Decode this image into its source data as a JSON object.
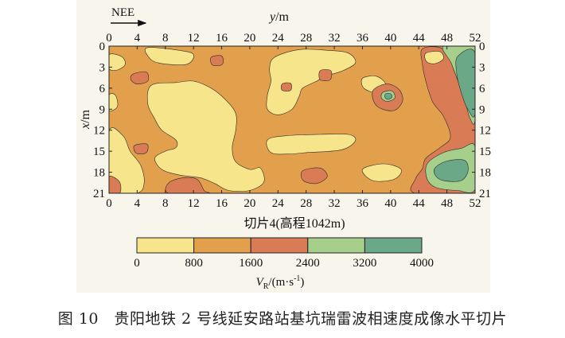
{
  "figure": {
    "caption": "图 10　贵阳地铁 2 号线延安路站基坑瑞雷波相速度成像水平切片"
  },
  "chart_data": {
    "type": "heatmap",
    "direction_label": "NEE",
    "xlabel_italic": "y",
    "xlabel_unit": "/m",
    "ylabel_italic": "x",
    "ylabel_unit": "/m",
    "x_ticks": [
      "0",
      "4",
      "8",
      "12",
      "16",
      "20",
      "24",
      "28",
      "32",
      "36",
      "40",
      "44",
      "48",
      "52"
    ],
    "y_ticks": [
      "0",
      "3",
      "6",
      "9",
      "12",
      "15",
      "18",
      "21"
    ],
    "xlim": [
      0,
      52
    ],
    "ylim": [
      0,
      21
    ],
    "slice_label": "切片4(高程1042m)",
    "colorbar": {
      "label_main": "V",
      "label_sub": "R",
      "label_unit": "/(m·s",
      "label_exp": "-1",
      "label_tail": ")",
      "ticks": [
        "0",
        "800",
        "1600",
        "2400",
        "3200",
        "4000"
      ],
      "bins": [
        {
          "min": 0,
          "max": 800,
          "color": "#f7e58c"
        },
        {
          "min": 800,
          "max": 1600,
          "color": "#e2a04d"
        },
        {
          "min": 1600,
          "max": 2400,
          "color": "#d97c55"
        },
        {
          "min": 2400,
          "max": 3200,
          "color": "#a7cf8c"
        },
        {
          "min": 3200,
          "max": 4000,
          "color": "#6aa888"
        }
      ]
    },
    "background_class": 1,
    "regions": [
      {
        "cls": 0,
        "pts": [
          [
            5.5,
            0.2
          ],
          [
            10,
            0.6
          ],
          [
            12,
            1.2
          ],
          [
            11,
            2.6
          ],
          [
            7,
            2.4
          ],
          [
            5.5,
            1.4
          ]
        ]
      },
      {
        "cls": 0,
        "pts": [
          [
            0,
            1.2
          ],
          [
            1.8,
            1.5
          ],
          [
            2.3,
            2.6
          ],
          [
            1.2,
            3.4
          ],
          [
            0,
            3.2
          ]
        ]
      },
      {
        "cls": 0,
        "pts": [
          [
            0,
            7
          ],
          [
            0.9,
            7
          ],
          [
            1.2,
            8.6
          ],
          [
            0,
            9.2
          ]
        ]
      },
      {
        "cls": 0,
        "pts": [
          [
            6,
            5.6
          ],
          [
            9.5,
            5.2
          ],
          [
            12,
            5
          ],
          [
            14.5,
            6
          ],
          [
            16.5,
            7.6
          ],
          [
            18,
            9.6
          ],
          [
            18,
            12
          ],
          [
            17.5,
            14.5
          ],
          [
            18,
            16.5
          ],
          [
            20,
            17.6
          ],
          [
            21.5,
            17.4
          ],
          [
            22,
            19.4
          ],
          [
            20,
            20.6
          ],
          [
            17,
            20.6
          ],
          [
            15,
            19.6
          ],
          [
            13,
            18.8
          ],
          [
            10,
            18.4
          ],
          [
            7.5,
            17.6
          ],
          [
            6.5,
            16
          ],
          [
            8,
            15
          ],
          [
            9.5,
            14.5
          ],
          [
            9.5,
            13.4
          ],
          [
            7.5,
            12
          ],
          [
            6.5,
            10.4
          ],
          [
            5.5,
            8.2
          ]
        ]
      },
      {
        "cls": 0,
        "pts": [
          [
            23.5,
            1.6
          ],
          [
            27,
            0.5
          ],
          [
            31,
            0.6
          ],
          [
            34,
            1
          ],
          [
            35,
            2.4
          ],
          [
            33,
            3.6
          ],
          [
            31,
            4.2
          ],
          [
            29.5,
            5
          ],
          [
            27.5,
            6
          ],
          [
            27,
            7.2
          ],
          [
            26,
            9
          ],
          [
            24,
            9.8
          ],
          [
            22.5,
            9
          ],
          [
            22.5,
            7
          ],
          [
            23,
            5
          ],
          [
            22.8,
            3.2
          ]
        ]
      },
      {
        "cls": 0,
        "pts": [
          [
            22.5,
            13.4
          ],
          [
            25,
            12.8
          ],
          [
            30,
            12.6
          ],
          [
            34,
            12.6
          ],
          [
            35,
            13.5
          ],
          [
            33,
            14.8
          ],
          [
            28,
            15.2
          ],
          [
            25.5,
            15.4
          ],
          [
            23,
            15.2
          ]
        ]
      },
      {
        "cls": 0,
        "pts": [
          [
            0,
            12.2
          ],
          [
            2,
            12.8
          ],
          [
            3,
            15
          ],
          [
            4.5,
            17
          ],
          [
            5,
            19.5
          ],
          [
            4,
            21
          ],
          [
            0,
            21
          ]
        ]
      },
      {
        "cls": 0,
        "pts": [
          [
            36,
            17.6
          ],
          [
            39,
            16.8
          ],
          [
            41.5,
            17.6
          ],
          [
            40.5,
            19
          ],
          [
            37.5,
            19.2
          ]
        ]
      },
      {
        "cls": 0,
        "pts": [
          [
            36,
            4.6
          ],
          [
            38,
            4.3
          ],
          [
            39.3,
            5.5
          ],
          [
            38,
            6.6
          ],
          [
            36.2,
            6
          ]
        ]
      },
      {
        "cls": 2,
        "pts": [
          [
            3.4,
            4
          ],
          [
            5.3,
            3.7
          ],
          [
            5.5,
            5
          ],
          [
            4,
            5.4
          ],
          [
            3.1,
            4.8
          ]
        ]
      },
      {
        "cls": 2,
        "pts": [
          [
            3.6,
            14.2
          ],
          [
            5.4,
            14
          ],
          [
            5.3,
            15.2
          ],
          [
            3.9,
            15.3
          ]
        ]
      },
      {
        "cls": 2,
        "pts": [
          [
            14.5,
            1.6
          ],
          [
            16,
            1.4
          ],
          [
            16.1,
            2.6
          ],
          [
            14.7,
            2.7
          ]
        ]
      },
      {
        "cls": 2,
        "pts": [
          [
            30,
            3.5
          ],
          [
            31.5,
            3.5
          ],
          [
            31.4,
            4.8
          ],
          [
            30,
            4.8
          ]
        ]
      },
      {
        "cls": 2,
        "pts": [
          [
            24.6,
            5.4
          ],
          [
            25.8,
            5.3
          ],
          [
            25.8,
            6.3
          ],
          [
            24.6,
            6.3
          ]
        ]
      },
      {
        "cls": 2,
        "pts": [
          [
            27.5,
            17.8
          ],
          [
            30,
            17.4
          ],
          [
            31,
            18.6
          ],
          [
            29.5,
            19.6
          ],
          [
            27.6,
            19.2
          ]
        ]
      },
      {
        "cls": 2,
        "pts": [
          [
            8.5,
            19.5
          ],
          [
            10.5,
            18.8
          ],
          [
            12.5,
            19
          ],
          [
            13.5,
            20.6
          ],
          [
            14,
            21
          ],
          [
            8.5,
            21
          ]
        ]
      },
      {
        "cls": 2,
        "pts": [
          [
            0,
            18.6
          ],
          [
            1.5,
            19.4
          ],
          [
            1.5,
            21
          ],
          [
            0,
            21
          ]
        ]
      },
      {
        "cls": 2,
        "pts": [
          [
            37.6,
            6.2
          ],
          [
            39.5,
            5.4
          ],
          [
            41.2,
            6.2
          ],
          [
            41.7,
            7.8
          ],
          [
            40.5,
            9.2
          ],
          [
            38.4,
            8.8
          ],
          [
            37.5,
            7.6
          ]
        ]
      },
      {
        "cls": 2,
        "pts": [
          [
            44.5,
            0.4
          ],
          [
            47,
            0.2
          ],
          [
            48.5,
            1.5
          ],
          [
            49,
            3.5
          ],
          [
            50.5,
            6.5
          ],
          [
            51,
            9
          ],
          [
            52,
            10
          ],
          [
            52,
            21
          ],
          [
            43.5,
            21
          ],
          [
            43.5,
            19
          ],
          [
            44.5,
            17.5
          ],
          [
            45,
            16
          ],
          [
            47,
            14.5
          ],
          [
            48.5,
            13
          ],
          [
            47.5,
            10
          ],
          [
            46,
            8
          ],
          [
            45,
            5
          ],
          [
            44.5,
            2.5
          ]
        ]
      },
      {
        "cls": 0,
        "pts": [
          [
            45,
            1
          ],
          [
            47,
            0.8
          ],
          [
            47.5,
            1.8
          ],
          [
            46.3,
            2.5
          ],
          [
            45.1,
            2.2
          ]
        ]
      },
      {
        "cls": 3,
        "pts": [
          [
            38.9,
            6.6
          ],
          [
            40.2,
            6.4
          ],
          [
            40.6,
            7.4
          ],
          [
            39.5,
            7.9
          ],
          [
            38.7,
            7.4
          ]
        ]
      },
      {
        "cls": 3,
        "pts": [
          [
            47.5,
            0
          ],
          [
            52,
            0
          ],
          [
            52,
            10.4
          ],
          [
            51.2,
            10.1
          ],
          [
            50.5,
            7.5
          ],
          [
            49.5,
            4.8
          ],
          [
            48.6,
            2.4
          ]
        ]
      },
      {
        "cls": 3,
        "pts": [
          [
            45.2,
            16.8
          ],
          [
            47.5,
            15.2
          ],
          [
            50,
            14.6
          ],
          [
            52,
            14.3
          ],
          [
            52,
            20.4
          ],
          [
            49.5,
            20.6
          ],
          [
            46.5,
            20.2
          ],
          [
            45.2,
            19
          ]
        ]
      },
      {
        "cls": 4,
        "pts": [
          [
            49.5,
            1.5
          ],
          [
            52,
            1
          ],
          [
            52,
            9.6
          ],
          [
            50.9,
            8.9
          ],
          [
            50,
            6.5
          ],
          [
            49.4,
            4
          ]
        ]
      },
      {
        "cls": 4,
        "pts": [
          [
            39.3,
            6.8
          ],
          [
            40,
            6.8
          ],
          [
            40.2,
            7.3
          ],
          [
            39.6,
            7.6
          ],
          [
            39.2,
            7.3
          ]
        ]
      },
      {
        "cls": 4,
        "pts": [
          [
            46.3,
            17.4
          ],
          [
            48,
            16.4
          ],
          [
            50.5,
            16.3
          ],
          [
            51,
            17.8
          ],
          [
            50,
            19.2
          ],
          [
            47.5,
            19.2
          ],
          [
            46.4,
            18.5
          ]
        ]
      }
    ]
  }
}
